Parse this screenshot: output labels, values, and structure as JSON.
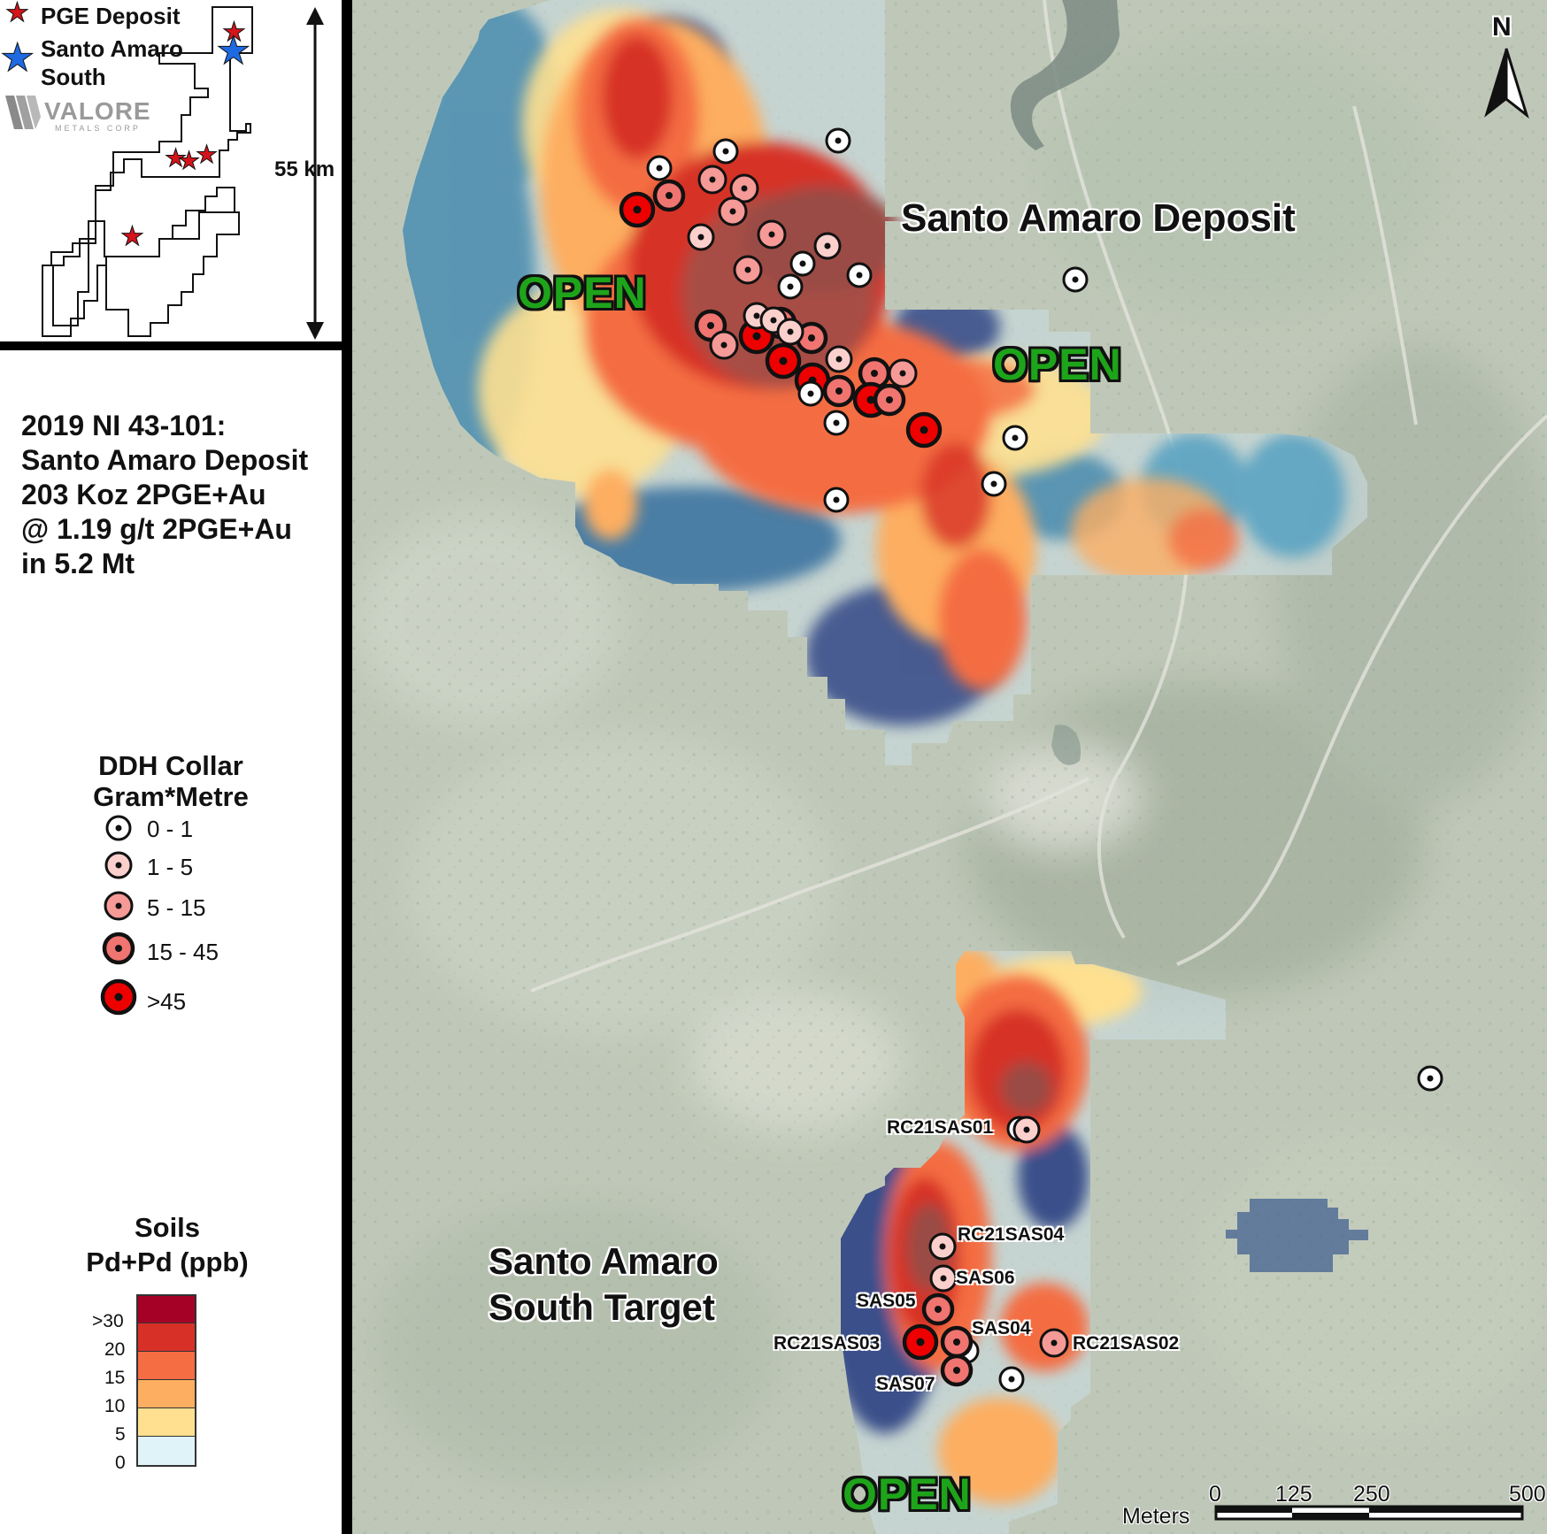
{
  "inset": {
    "legend_pge": "PGE Deposit",
    "legend_santo_line1": "Santo Amaro",
    "legend_santo_line2": "South",
    "logo_text": "VALORE",
    "logo_sub": "METALS CORP",
    "distance": "55 km"
  },
  "resource": {
    "line1": "2019 NI 43-101:",
    "line2": "Santo Amaro Deposit",
    "line3": "203 Koz 2PGE+Au",
    "line4": "@ 1.19 g/t 2PGE+Au",
    "line5": "in 5.2 Mt"
  },
  "ddh_legend": {
    "title_line1": "DDH Collar",
    "title_line2": "Gram*Metre",
    "classes": [
      "0 - 1",
      "1 - 5",
      "5 - 15",
      "15 - 45",
      ">45"
    ],
    "colors": [
      "#ffffff",
      "#fbd0cc",
      "#f59a96",
      "#f07470",
      "#ee0000"
    ]
  },
  "soils_legend": {
    "title_line1": "Soils",
    "title_line2": "Pd+Pd (ppb)",
    "ticks": [
      ">30",
      "20",
      "15",
      "10",
      "5",
      "0"
    ],
    "colors": [
      "#a50026",
      "#d73027",
      "#f46d43",
      "#fdae61",
      "#fee090",
      "#e0f3f8"
    ]
  },
  "map": {
    "north": "N",
    "deposit_label": "Santo Amaro Deposit",
    "south_label_line1": "Santo Amaro",
    "south_label_line2": "South Target",
    "open_label": "OPEN",
    "holes": [
      "RC21SAS01",
      "RC21SAS04",
      "SAS06",
      "SAS05",
      "SAS04",
      "RC21SAS03",
      "RC21SAS02",
      "SAS07"
    ],
    "scale_unit": "Meters",
    "scale_ticks": [
      "0",
      "125",
      "250",
      "500"
    ]
  }
}
